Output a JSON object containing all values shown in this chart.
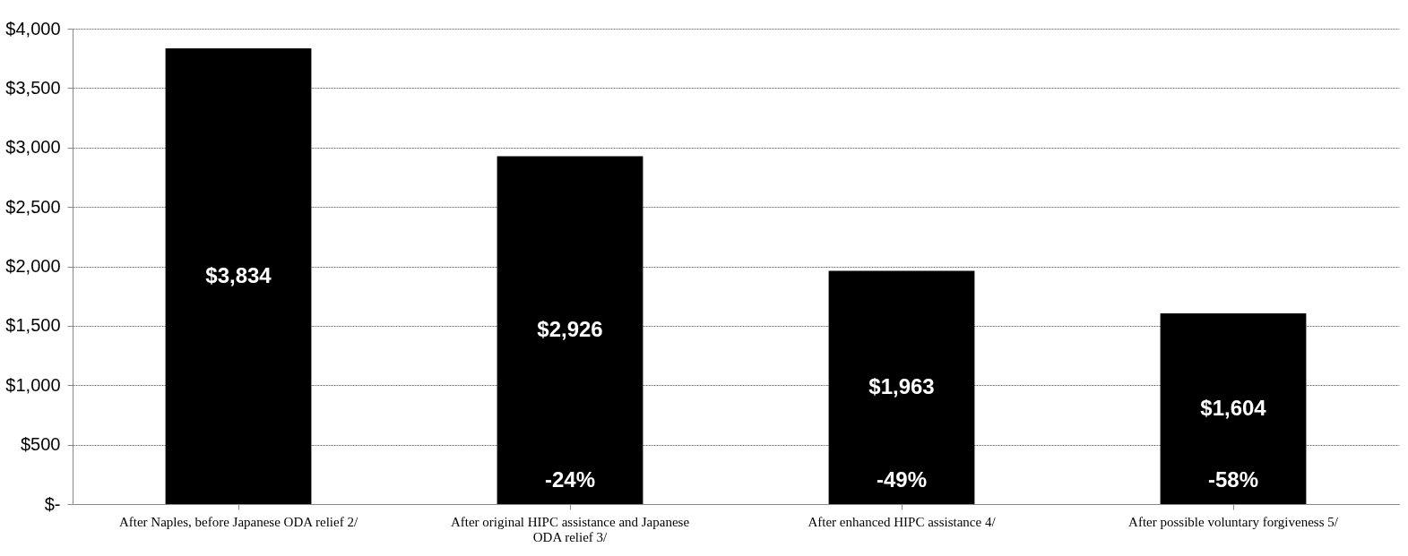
{
  "chart_data": {
    "type": "bar",
    "categories": [
      "After Naples, before Japanese ODA relief 2/",
      "After original HIPC assistance and Japanese ODA relief 3/",
      "After enhanced HIPC assistance 4/",
      "After possible voluntary forgiveness 5/"
    ],
    "values": [
      3834,
      2926,
      1963,
      1604
    ],
    "color": "#000000",
    "value_labels": [
      "$3,834",
      "$2,926",
      "$1,963",
      "$1,604"
    ],
    "annotations": [
      "-24%",
      "-49%",
      "-58%"
    ],
    "ylim": [
      0,
      4000
    ],
    "yticks": [
      {
        "value": 0,
        "label": "$-"
      },
      {
        "value": 500,
        "label": "$500"
      },
      {
        "value": 1000,
        "label": "$1,000"
      },
      {
        "value": 1500,
        "label": "$1,500"
      },
      {
        "value": 2000,
        "label": "$2,000"
      },
      {
        "value": 2500,
        "label": "$2,500"
      },
      {
        "value": 3000,
        "label": "$3,000"
      },
      {
        "value": 3500,
        "label": "$3,500"
      },
      {
        "value": 4000,
        "label": "$4,000"
      }
    ],
    "grid": "y"
  }
}
